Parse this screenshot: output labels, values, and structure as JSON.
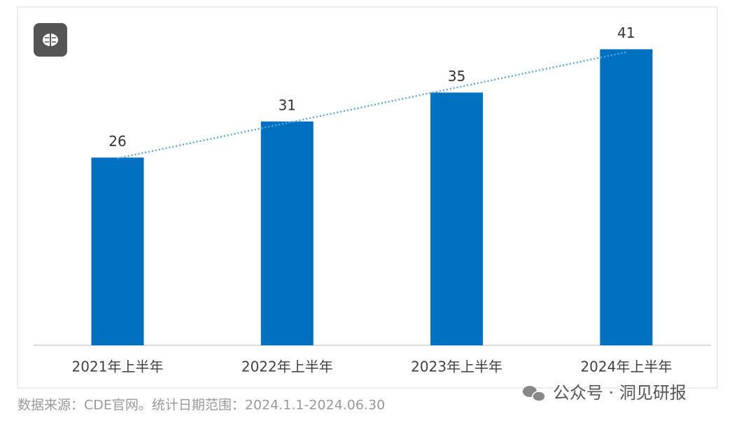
{
  "chart_data": {
    "type": "bar",
    "categories": [
      "2021年上半年",
      "2022年上半年",
      "2023年上半年",
      "2024年上半年"
    ],
    "values": [
      26,
      31,
      35,
      41
    ],
    "color": "#0070c0",
    "trendline": true,
    "trendline_color": "#5aa7dd"
  },
  "footer": {
    "source": "数据来源：CDE官网。统计日期范围：2024.1.1-2024.06.30",
    "watermark": "公众号 · 洞见研报"
  }
}
